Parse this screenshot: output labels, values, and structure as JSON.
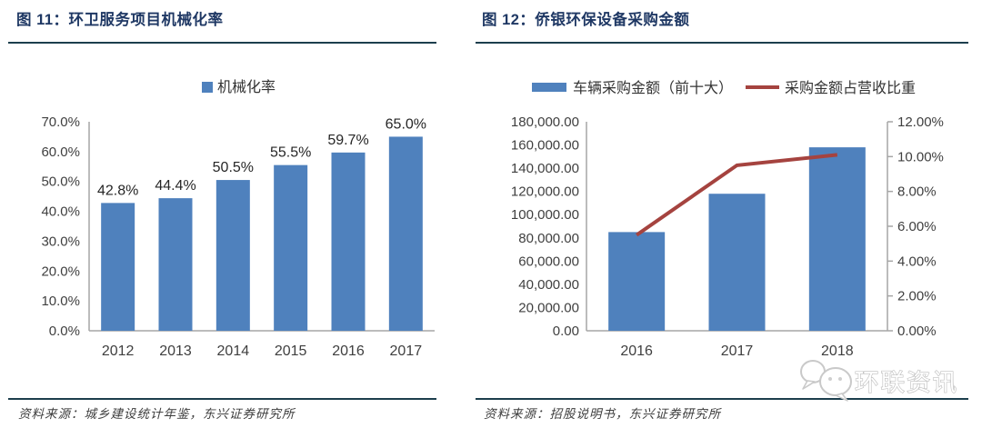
{
  "panels": [
    {
      "title": "图 11：环卫服务项目机械化率",
      "source": "资料来源：城乡建设统计年鉴，东兴证券研究所"
    },
    {
      "title": "图 12：侨银环保设备采购金额",
      "source": "资料来源：招股说明书，东兴证券研究所"
    }
  ],
  "watermark": {
    "text": "环联资讯",
    "icon": "chat-bubbles-icon"
  },
  "colors": {
    "title": "#1F3864",
    "rule": "#1c3e4d",
    "axis": "#A6A6A6",
    "tick_text": "#3f3f3f",
    "data_label": "#262626",
    "source_text": "#3d3d3d",
    "bar": "#4F81BD",
    "line": "#A5433F"
  },
  "chart_data": [
    {
      "type": "bar",
      "title": "图 11：环卫服务项目机械化率",
      "legend": [
        "机械化率"
      ],
      "legend_position": "top",
      "categories": [
        "2012",
        "2013",
        "2014",
        "2015",
        "2016",
        "2017"
      ],
      "values": [
        42.8,
        44.4,
        50.5,
        55.5,
        59.7,
        65.0
      ],
      "data_labels": [
        "42.8%",
        "44.4%",
        "50.5%",
        "55.5%",
        "59.7%",
        "65.0%"
      ],
      "xlabel": "",
      "ylabel": "",
      "ylim": [
        0,
        70
      ],
      "ytick_step": 10,
      "ytick_labels": [
        "0.0%",
        "10.0%",
        "20.0%",
        "30.0%",
        "40.0%",
        "50.0%",
        "60.0%",
        "70.0%"
      ],
      "bar_color": "#4F81BD",
      "grid": false
    },
    {
      "type": "combo",
      "title": "图 12：侨银环保设备采购金额",
      "legend_position": "top",
      "categories": [
        "2016",
        "2017",
        "2018"
      ],
      "series": [
        {
          "name": "车辆采购金额（前十大）",
          "chart": "bar",
          "axis": "left",
          "values": [
            85000,
            118000,
            158000
          ],
          "color": "#4F81BD"
        },
        {
          "name": "采购金额占营收比重",
          "chart": "line",
          "axis": "right",
          "values": [
            5.5,
            9.5,
            10.1
          ],
          "color": "#A5433F"
        }
      ],
      "left_axis": {
        "min": 0,
        "max": 180000,
        "step": 20000,
        "tick_labels": [
          "0.00",
          "20,000.00",
          "40,000.00",
          "60,000.00",
          "80,000.00",
          "100,000.00",
          "120,000.00",
          "140,000.00",
          "160,000.00",
          "180,000.00"
        ]
      },
      "right_axis": {
        "min": 0,
        "max": 12,
        "step": 2,
        "tick_labels": [
          "0.00%",
          "2.00%",
          "4.00%",
          "6.00%",
          "8.00%",
          "10.00%",
          "12.00%"
        ]
      },
      "grid": false
    }
  ]
}
